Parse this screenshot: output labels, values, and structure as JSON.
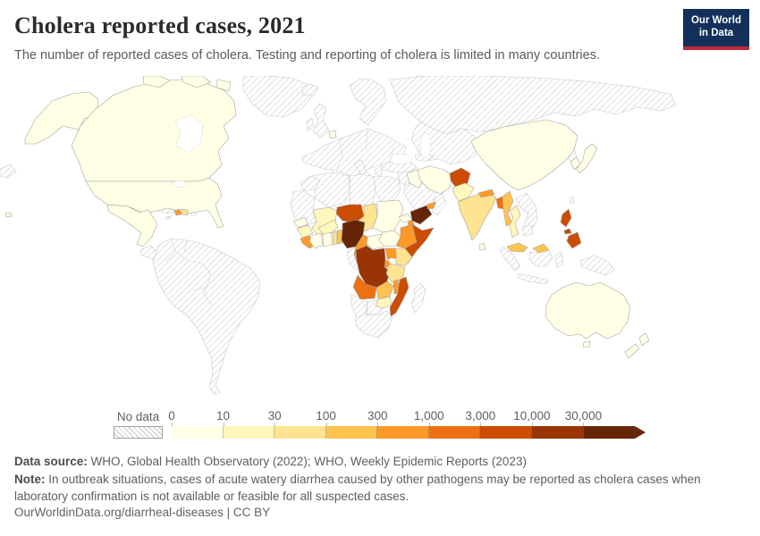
{
  "header": {
    "title": "Cholera reported cases, 2021",
    "subtitle": "The number of reported cases of cholera. Testing and reporting of cholera is limited in many countries.",
    "logo": {
      "line1": "Our World",
      "line2": "in Data",
      "bg": "#12305a",
      "accent": "#c0283c"
    }
  },
  "legend": {
    "no_data_label": "No data"
  },
  "chart_data": {
    "type": "choropleth_map",
    "title": "Cholera reported cases, 2021",
    "unit": "reported cholera cases",
    "year": "2021",
    "scale": "log-like binned",
    "bin_labels": [
      "0",
      "10",
      "30",
      "100",
      "300",
      "1,000",
      "3,000",
      "10,000",
      "30,000"
    ],
    "bin_ranges": [
      "0-9",
      "10-29",
      "30-99",
      "100-299",
      "300-999",
      "1,000-2,999",
      "3,000-9,999",
      "10,000-29,999",
      "30,000+"
    ],
    "bin_colors": [
      "#ffffe5",
      "#fff7bc",
      "#fee391",
      "#fec44f",
      "#fe9929",
      "#ec7014",
      "#cc4c02",
      "#993404",
      "#662506"
    ],
    "no_data_style": "hatched",
    "country_bins": {
      "canada": 0,
      "united-states": 0,
      "mexico": 0,
      "haiti": 4,
      "dominican-republic": 2,
      "netherlands": 0,
      "senegal": 0,
      "mali": 1,
      "burkina-faso": 1,
      "guinea": 1,
      "sierra-leone-liberia": 4,
      "cote-divoire": 0,
      "ghana": 0,
      "togo": 2,
      "benin": 3,
      "niger": 6,
      "nigeria": 8,
      "chad": 2,
      "sudan": 0,
      "eritrea": 0,
      "djibouti": 4,
      "cameroon": 4,
      "central-african-republic": 0,
      "south-sudan": 0,
      "ethiopia": 4,
      "somalia": 6,
      "kenya": 2,
      "uganda": 4,
      "rwanda-burundi": 4,
      "democratic-republic-of-congo": 7,
      "tanzania": 2,
      "angola": 5,
      "zambia": 3,
      "malawi": 4,
      "mozambique": 6,
      "zimbabwe": 1,
      "iran": 0,
      "iraq": 0,
      "yemen": 8,
      "united-arab-emirates": 4,
      "afghanistan": 6,
      "pakistan": 1,
      "india": 2,
      "nepal": 4,
      "sri-lanka": 0,
      "bangladesh": 5,
      "myanmar": 3,
      "thailand": 1,
      "malaysia": 3,
      "china": 0,
      "japan": 0,
      "south-korea": 0,
      "philippines": 6,
      "australia": 0,
      "new-zealand": 0
    },
    "no_data_regions": [
      "Greenland",
      "Cuba",
      "Central America",
      "Colombia",
      "Venezuela",
      "Brazil",
      "Peru",
      "Chile",
      "Argentina",
      "Iceland",
      "United Kingdom",
      "Europe mainland",
      "Scandinavia",
      "Russia",
      "Kazakhstan",
      "Central Asia",
      "Mongolia",
      "North Korea",
      "Turkey",
      "Saudi Arabia",
      "Oman",
      "Morocco",
      "Algeria",
      "Libya",
      "Egypt",
      "Mauritania",
      "Gabon",
      "Congo",
      "Namibia",
      "Botswana",
      "South Africa",
      "Madagascar",
      "Vietnam",
      "Laos",
      "Cambodia",
      "Indonesia",
      "Papua New Guinea"
    ]
  },
  "footer": {
    "source_label": "Data source:",
    "source_text": " WHO, Global Health Observatory (2022); WHO, Weekly Epidemic Reports (2023)",
    "note_label": "Note:",
    "note_text": " In outbreak situations, cases of acute watery diarrhea caused by other pathogens may be reported as cholera cases when laboratory confirmation is not available or feasible for all suspected cases.",
    "url": "OurWorldinData.org/diarrheal-diseases",
    "license": " | CC BY"
  }
}
